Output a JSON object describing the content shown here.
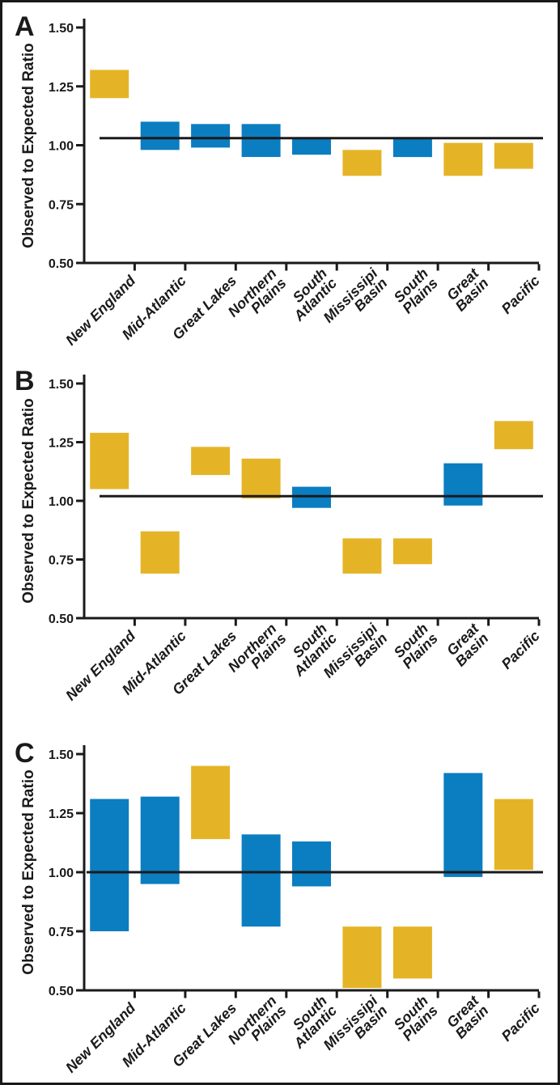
{
  "figure": {
    "background": "#FFFFFF",
    "border_color": "#1A1A1A"
  },
  "colors": {
    "yellow": "#E5B426",
    "blue": "#0B7DC1",
    "axis": "#1A1A1A"
  },
  "ylabel": "Observed to Expected Ratio",
  "ylim": [
    0.5,
    1.5
  ],
  "yticks": [
    {
      "value": 0.5,
      "label": "0.50"
    },
    {
      "value": 0.75,
      "label": "0.75"
    },
    {
      "value": 1.0,
      "label": "1.00"
    },
    {
      "value": 1.25,
      "label": "1.25"
    },
    {
      "value": 1.5,
      "label": "1.50"
    }
  ],
  "category_labels": [
    {
      "label": "New England",
      "lines": [
        "New England"
      ]
    },
    {
      "label": "Mid-Atlantic",
      "lines": [
        "Mid-Atlantic"
      ]
    },
    {
      "label": "Great Lakes",
      "lines": [
        "Great Lakes"
      ]
    },
    {
      "label": "Northern Plains",
      "lines": [
        "Northern",
        "Plains"
      ]
    },
    {
      "label": "South Atlantic",
      "lines": [
        "South",
        "Atlantic"
      ]
    },
    {
      "label": "Mississipi Basin",
      "lines": [
        "Mississipi",
        "Basin"
      ]
    },
    {
      "label": "South Plains",
      "lines": [
        "South",
        "Plains"
      ]
    },
    {
      "label": "Great Basin",
      "lines": [
        "Great",
        "Basin"
      ]
    },
    {
      "label": "Pacific",
      "lines": [
        "Pacific"
      ]
    }
  ],
  "chart_data": [
    {
      "type": "bar",
      "subtype": "floating-range-bar",
      "panel_label": "A",
      "ylabel": "Observed to Expected Ratio",
      "ylim": [
        0.5,
        1.5
      ],
      "grid": false,
      "reference_line": 1.03,
      "categories": [
        "New England",
        "Mid-Atlantic",
        "Great Lakes",
        "Northern Plains",
        "South Atlantic",
        "Mississipi Basin",
        "South Plains",
        "Great Basin",
        "Pacific"
      ],
      "bars": [
        {
          "category": "New England",
          "low": 1.2,
          "high": 1.32,
          "color": "yellow"
        },
        {
          "category": "Mid-Atlantic",
          "low": 0.98,
          "high": 1.1,
          "color": "blue"
        },
        {
          "category": "Great Lakes",
          "low": 0.99,
          "high": 1.09,
          "color": "blue"
        },
        {
          "category": "Northern Plains",
          "low": 0.95,
          "high": 1.09,
          "color": "blue"
        },
        {
          "category": "South Atlantic",
          "low": 0.96,
          "high": 1.03,
          "color": "blue"
        },
        {
          "category": "Mississipi Basin",
          "low": 0.87,
          "high": 0.98,
          "color": "yellow"
        },
        {
          "category": "South Plains",
          "low": 0.95,
          "high": 1.03,
          "color": "blue"
        },
        {
          "category": "Great Basin",
          "low": 0.87,
          "high": 1.01,
          "color": "yellow"
        },
        {
          "category": "Pacific",
          "low": 0.9,
          "high": 1.01,
          "color": "yellow"
        }
      ]
    },
    {
      "type": "bar",
      "subtype": "floating-range-bar",
      "panel_label": "B",
      "ylabel": "Observed to Expected Ratio",
      "ylim": [
        0.5,
        1.5
      ],
      "grid": false,
      "reference_line": 1.02,
      "categories": [
        "New England",
        "Mid-Atlantic",
        "Great Lakes",
        "Northern Plains",
        "South Atlantic",
        "Mississipi Basin",
        "South Plains",
        "Great Basin",
        "Pacific"
      ],
      "bars": [
        {
          "category": "New England",
          "low": 1.05,
          "high": 1.29,
          "color": "yellow"
        },
        {
          "category": "Mid-Atlantic",
          "low": 0.69,
          "high": 0.87,
          "color": "yellow"
        },
        {
          "category": "Great Lakes",
          "low": 1.11,
          "high": 1.23,
          "color": "yellow"
        },
        {
          "category": "Northern Plains",
          "low": 1.01,
          "high": 1.18,
          "color": "yellow"
        },
        {
          "category": "South Atlantic",
          "low": 0.97,
          "high": 1.06,
          "color": "blue"
        },
        {
          "category": "Mississipi Basin",
          "low": 0.69,
          "high": 0.84,
          "color": "yellow"
        },
        {
          "category": "South Plains",
          "low": 0.73,
          "high": 0.84,
          "color": "yellow"
        },
        {
          "category": "Great Basin",
          "low": 0.98,
          "high": 1.16,
          "color": "blue"
        },
        {
          "category": "Pacific",
          "low": 1.22,
          "high": 1.34,
          "color": "yellow"
        }
      ]
    },
    {
      "type": "bar",
      "subtype": "floating-range-bar",
      "panel_label": "C",
      "ylabel": "Observed to Expected Ratio",
      "ylim": [
        0.5,
        1.5
      ],
      "grid": false,
      "reference_line": 1.0,
      "categories": [
        "New England",
        "Mid-Atlantic",
        "Great Lakes",
        "Northern Plains",
        "South Atlantic",
        "Mississipi Basin",
        "South Plains",
        "Great Basin",
        "Pacific"
      ],
      "bars": [
        {
          "category": "New England",
          "low": 0.75,
          "high": 1.31,
          "color": "blue"
        },
        {
          "category": "Mid-Atlantic",
          "low": 0.95,
          "high": 1.32,
          "color": "blue"
        },
        {
          "category": "Great Lakes",
          "low": 1.14,
          "high": 1.45,
          "color": "yellow"
        },
        {
          "category": "Northern Plains",
          "low": 0.77,
          "high": 1.16,
          "color": "blue"
        },
        {
          "category": "South Atlantic",
          "low": 0.94,
          "high": 1.13,
          "color": "blue"
        },
        {
          "category": "Mississipi Basin",
          "low": 0.51,
          "high": 0.77,
          "color": "yellow"
        },
        {
          "category": "South Plains",
          "low": 0.55,
          "high": 0.77,
          "color": "yellow"
        },
        {
          "category": "Great Basin",
          "low": 0.98,
          "high": 1.42,
          "color": "blue"
        },
        {
          "category": "Pacific",
          "low": 1.01,
          "high": 1.31,
          "color": "yellow"
        }
      ]
    }
  ]
}
